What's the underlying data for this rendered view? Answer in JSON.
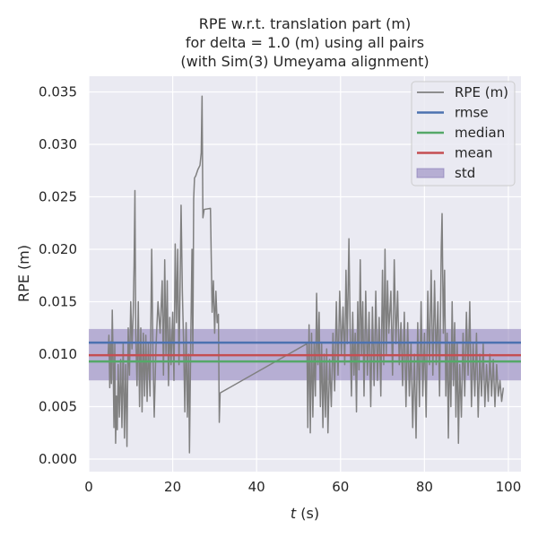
{
  "chart_data": {
    "type": "line",
    "title_lines": [
      "RPE w.r.t. translation part (m)",
      "for delta = 1.0 (m) using all pairs",
      "(with Sim(3) Umeyama alignment)"
    ],
    "xlabel_italic": "t",
    "xlabel_rest": " (s)",
    "ylabel": "RPE (m)",
    "xlim": [
      0,
      103
    ],
    "ylim": [
      -0.0012,
      0.0365
    ],
    "xticks": [
      0,
      20,
      40,
      60,
      80,
      100
    ],
    "xtick_labels": [
      "0",
      "20",
      "40",
      "60",
      "80",
      "100"
    ],
    "yticks": [
      0.0,
      0.005,
      0.01,
      0.015,
      0.02,
      0.025,
      0.03,
      0.035
    ],
    "ytick_labels": [
      "0.000",
      "0.005",
      "0.010",
      "0.015",
      "0.020",
      "0.025",
      "0.030",
      "0.035"
    ],
    "grid": true,
    "legend_position": "top-right",
    "legend": [
      {
        "label": "RPE (m)",
        "kind": "line",
        "color": "#808080"
      },
      {
        "label": "rmse",
        "kind": "line",
        "color": "#4c72b0"
      },
      {
        "label": "median",
        "kind": "line",
        "color": "#55a868"
      },
      {
        "label": "mean",
        "kind": "line",
        "color": "#c44e52"
      },
      {
        "label": "std",
        "kind": "patch",
        "color": "#8172b3"
      }
    ],
    "stats": {
      "rmse": 0.0111,
      "median": 0.0093,
      "mean": 0.0099,
      "std_band": [
        0.0075,
        0.0124
      ]
    },
    "series": [
      {
        "name": "RPE (m)",
        "color": "#808080",
        "points": [
          [
            4.6,
            0.0098
          ],
          [
            4.8,
            0.0118
          ],
          [
            5.0,
            0.0068
          ],
          [
            5.2,
            0.0112
          ],
          [
            5.4,
            0.0072
          ],
          [
            5.6,
            0.0142
          ],
          [
            5.8,
            0.0095
          ],
          [
            6.0,
            0.003
          ],
          [
            6.2,
            0.011
          ],
          [
            6.4,
            0.0015
          ],
          [
            6.6,
            0.006
          ],
          [
            6.8,
            0.0028
          ],
          [
            7.0,
            0.009
          ],
          [
            7.3,
            0.004
          ],
          [
            7.6,
            0.0095
          ],
          [
            7.9,
            0.003
          ],
          [
            8.2,
            0.011
          ],
          [
            8.5,
            0.002
          ],
          [
            8.8,
            0.009
          ],
          [
            9.1,
            0.0012
          ],
          [
            9.4,
            0.0125
          ],
          [
            9.7,
            0.008
          ],
          [
            10.0,
            0.015
          ],
          [
            10.3,
            0.0105
          ],
          [
            10.6,
            0.014
          ],
          [
            10.8,
            0.0185
          ],
          [
            11.0,
            0.0256
          ],
          [
            11.2,
            0.012
          ],
          [
            11.5,
            0.007
          ],
          [
            11.8,
            0.015
          ],
          [
            12.1,
            0.005
          ],
          [
            12.4,
            0.0125
          ],
          [
            12.7,
            0.0045
          ],
          [
            13.0,
            0.012
          ],
          [
            13.3,
            0.006
          ],
          [
            13.6,
            0.0118
          ],
          [
            13.9,
            0.0055
          ],
          [
            14.2,
            0.011
          ],
          [
            14.6,
            0.006
          ],
          [
            15.0,
            0.02
          ],
          [
            15.3,
            0.01
          ],
          [
            15.6,
            0.004
          ],
          [
            16.0,
            0.0105
          ],
          [
            16.5,
            0.015
          ],
          [
            17.0,
            0.012
          ],
          [
            17.5,
            0.017
          ],
          [
            17.8,
            0.008
          ],
          [
            18.1,
            0.019
          ],
          [
            18.4,
            0.01
          ],
          [
            18.7,
            0.017
          ],
          [
            19.0,
            0.007
          ],
          [
            19.3,
            0.0135
          ],
          [
            19.6,
            0.009
          ],
          [
            20.0,
            0.014
          ],
          [
            20.3,
            0.0075
          ],
          [
            20.6,
            0.0205
          ],
          [
            20.9,
            0.013
          ],
          [
            21.2,
            0.02
          ],
          [
            21.5,
            0.009
          ],
          [
            21.8,
            0.0175
          ],
          [
            22.0,
            0.0242
          ],
          [
            22.3,
            0.016
          ],
          [
            22.6,
            0.011
          ],
          [
            22.9,
            0.0045
          ],
          [
            23.2,
            0.013
          ],
          [
            23.5,
            0.004
          ],
          [
            23.8,
            0.01
          ],
          [
            24.0,
            0.0006
          ],
          [
            24.3,
            0.011
          ],
          [
            24.6,
            0.02
          ],
          [
            24.8,
            0.01
          ],
          [
            25.0,
            0.0248
          ],
          [
            25.2,
            0.0268
          ],
          [
            25.5,
            0.027
          ],
          [
            26.0,
            0.0276
          ],
          [
            26.5,
            0.028
          ],
          [
            26.8,
            0.0292
          ],
          [
            27.0,
            0.0346
          ],
          [
            27.2,
            0.023
          ],
          [
            27.5,
            0.0238
          ],
          [
            29.0,
            0.0239
          ],
          [
            29.2,
            0.019
          ],
          [
            29.4,
            0.014
          ],
          [
            29.7,
            0.017
          ],
          [
            30.0,
            0.012
          ],
          [
            30.3,
            0.016
          ],
          [
            30.6,
            0.013
          ],
          [
            30.9,
            0.0138
          ],
          [
            31.1,
            0.0035
          ],
          [
            31.3,
            0.0063
          ],
          [
            52.0,
            0.011
          ],
          [
            52.2,
            0.003
          ],
          [
            52.5,
            0.0128
          ],
          [
            52.8,
            0.0025
          ],
          [
            53.1,
            0.012
          ],
          [
            53.4,
            0.004
          ],
          [
            53.7,
            0.011
          ],
          [
            54.0,
            0.006
          ],
          [
            54.3,
            0.0158
          ],
          [
            54.6,
            0.009
          ],
          [
            54.9,
            0.014
          ],
          [
            55.2,
            0.005
          ],
          [
            55.5,
            0.011
          ],
          [
            55.8,
            0.003
          ],
          [
            56.1,
            0.01
          ],
          [
            56.4,
            0.004
          ],
          [
            56.7,
            0.0105
          ],
          [
            57.0,
            0.0025
          ],
          [
            57.4,
            0.0095
          ],
          [
            57.8,
            0.005
          ],
          [
            58.2,
            0.012
          ],
          [
            58.6,
            0.0065
          ],
          [
            59.0,
            0.015
          ],
          [
            59.4,
            0.008
          ],
          [
            59.8,
            0.016
          ],
          [
            60.2,
            0.01
          ],
          [
            60.6,
            0.0145
          ],
          [
            61.0,
            0.009
          ],
          [
            61.3,
            0.018
          ],
          [
            61.6,
            0.011
          ],
          [
            62.0,
            0.021
          ],
          [
            62.3,
            0.012
          ],
          [
            62.6,
            0.006
          ],
          [
            62.9,
            0.014
          ],
          [
            63.2,
            0.008
          ],
          [
            63.5,
            0.012
          ],
          [
            63.8,
            0.0045
          ],
          [
            64.1,
            0.015
          ],
          [
            64.4,
            0.0085
          ],
          [
            64.7,
            0.019
          ],
          [
            65.0,
            0.01
          ],
          [
            65.3,
            0.015
          ],
          [
            65.6,
            0.006
          ],
          [
            66.0,
            0.016
          ],
          [
            66.4,
            0.008
          ],
          [
            66.8,
            0.014
          ],
          [
            67.2,
            0.005
          ],
          [
            67.6,
            0.0145
          ],
          [
            68.0,
            0.007
          ],
          [
            68.4,
            0.016
          ],
          [
            68.8,
            0.0075
          ],
          [
            69.2,
            0.0135
          ],
          [
            69.6,
            0.006
          ],
          [
            70.0,
            0.018
          ],
          [
            70.3,
            0.009
          ],
          [
            70.6,
            0.02
          ],
          [
            70.9,
            0.01
          ],
          [
            71.2,
            0.017
          ],
          [
            71.5,
            0.012
          ],
          [
            72.0,
            0.016
          ],
          [
            72.4,
            0.008
          ],
          [
            72.8,
            0.019
          ],
          [
            73.2,
            0.011
          ],
          [
            73.6,
            0.016
          ],
          [
            74.0,
            0.009
          ],
          [
            74.4,
            0.013
          ],
          [
            74.8,
            0.007
          ],
          [
            75.2,
            0.014
          ],
          [
            75.6,
            0.005
          ],
          [
            76.0,
            0.013
          ],
          [
            76.4,
            0.006
          ],
          [
            76.8,
            0.011
          ],
          [
            77.2,
            0.003
          ],
          [
            77.6,
            0.01
          ],
          [
            78.0,
            0.002
          ],
          [
            78.4,
            0.013
          ],
          [
            78.8,
            0.005
          ],
          [
            79.2,
            0.015
          ],
          [
            79.6,
            0.006
          ],
          [
            80.0,
            0.012
          ],
          [
            80.4,
            0.004
          ],
          [
            80.8,
            0.016
          ],
          [
            81.2,
            0.009
          ],
          [
            81.6,
            0.018
          ],
          [
            82.0,
            0.008
          ],
          [
            82.4,
            0.017
          ],
          [
            82.8,
            0.009
          ],
          [
            83.2,
            0.015
          ],
          [
            83.6,
            0.006
          ],
          [
            84.0,
            0.02
          ],
          [
            84.2,
            0.0234
          ],
          [
            84.5,
            0.012
          ],
          [
            84.8,
            0.018
          ],
          [
            85.1,
            0.006
          ],
          [
            85.4,
            0.012
          ],
          [
            85.7,
            0.002
          ],
          [
            86.0,
            0.011
          ],
          [
            86.3,
            0.005
          ],
          [
            86.6,
            0.015
          ],
          [
            86.9,
            0.007
          ],
          [
            87.2,
            0.013
          ],
          [
            87.5,
            0.004
          ],
          [
            87.8,
            0.011
          ],
          [
            88.1,
            0.0015
          ],
          [
            88.4,
            0.009
          ],
          [
            88.8,
            0.004
          ],
          [
            89.2,
            0.012
          ],
          [
            89.6,
            0.006
          ],
          [
            90.0,
            0.014
          ],
          [
            90.4,
            0.008
          ],
          [
            90.8,
            0.015
          ],
          [
            91.2,
            0.005
          ],
          [
            91.6,
            0.011
          ],
          [
            92.0,
            0.006
          ],
          [
            92.4,
            0.012
          ],
          [
            92.8,
            0.004
          ],
          [
            93.2,
            0.01
          ],
          [
            93.6,
            0.006
          ],
          [
            94.0,
            0.011
          ],
          [
            94.4,
            0.005
          ],
          [
            94.8,
            0.009
          ],
          [
            95.2,
            0.0055
          ],
          [
            95.6,
            0.01
          ],
          [
            96.0,
            0.006
          ],
          [
            96.4,
            0.0095
          ],
          [
            96.8,
            0.005
          ],
          [
            97.2,
            0.009
          ],
          [
            97.6,
            0.006
          ],
          [
            98.0,
            0.0075
          ],
          [
            98.4,
            0.0055
          ],
          [
            98.8,
            0.0068
          ]
        ]
      }
    ]
  }
}
